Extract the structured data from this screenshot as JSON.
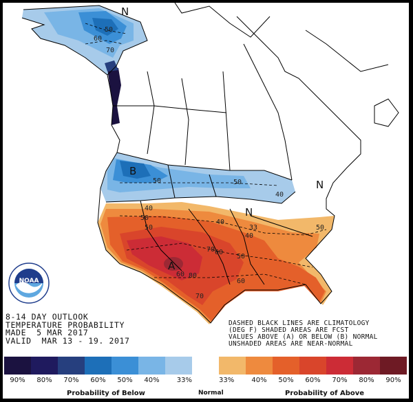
{
  "outlook": {
    "line1": "8-14 DAY OUTLOOK",
    "line2": "TEMPERATURE PROBABILITY",
    "line3": "MADE  5 MAR 2017",
    "line4": "VALID  MAR 13 - 19. 2017"
  },
  "notes": {
    "line1": "DASHED BLACK LINES ARE CLIMATOLOGY",
    "line2": "(DEG F) SHADED AREAS ARE FCST",
    "line3": "VALUES ABOVE (A) OR BELOW (B) NORMAL",
    "line4": "UNSHADED AREAS ARE NEAR-NORMAL"
  },
  "logo": {
    "text": "NOAA",
    "ring": "NATIONAL OCEANIC AND ATMOSPHERIC ADMINISTRATION · U.S. DEPARTMENT OF COMMERCE",
    "colors": [
      "#1f3d8c",
      "#5fa8e0"
    ]
  },
  "map_labels": {
    "n_alaska": "N",
    "n_northeast": "N",
    "n_central": "N",
    "b_north": "B",
    "a_southwest": "A",
    "alaska_50": "50",
    "alaska_60": "60",
    "alaska_70": "70",
    "north_50_west": "50",
    "north_50_mid": "50",
    "north_40": "40",
    "sw_50": "50",
    "sw_50b": "50",
    "sw_40": "40",
    "central_40": "40",
    "central_33": "33",
    "central_40b": "40",
    "south_60": "60",
    "south_50": "50",
    "south_70": "70",
    "south_60b": "60",
    "south_60c": "60",
    "south_50b": "50",
    "sw_70": "70",
    "sw_80": "80"
  },
  "scale": {
    "colors": [
      "#1b1240",
      "#1f1a5e",
      "#263f7e",
      "#1d6fb8",
      "#3b8fd6",
      "#79b5e6",
      "#a7cbea",
      "#ffffff",
      "#f2b86a",
      "#ee8a3e",
      "#e4602a",
      "#d9452b",
      "#cc2c36",
      "#9c2834",
      "#6e1a24"
    ],
    "percentages": [
      "90%",
      "80%",
      "70%",
      "60%",
      "50%",
      "40%",
      "33%",
      "33%",
      "40%",
      "50%",
      "60%",
      "70%",
      "80%",
      "90%"
    ],
    "below_label": "Probability of Below",
    "normal_label": "Normal",
    "above_label": "Probability of Above"
  }
}
